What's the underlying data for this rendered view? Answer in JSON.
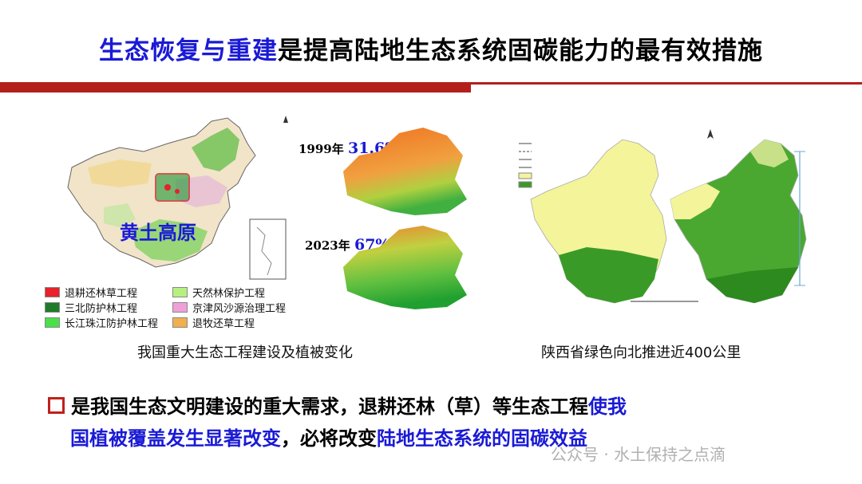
{
  "title": {
    "highlight": "生态恢复与重建",
    "rest": "是提高陆地生态系统固碳能力的最有效措施"
  },
  "left_map": {
    "label": "黄土高原",
    "legend": [
      {
        "label": "退耕还林草工程",
        "color": "#e8212a"
      },
      {
        "label": "天然林保护工程",
        "color": "#b8f080"
      },
      {
        "label": "三北防护林工程",
        "color": "#1f7a2a"
      },
      {
        "label": "京津风沙源治理工程",
        "color": "#f0a0d8"
      },
      {
        "label": "长江珠江防护林工程",
        "color": "#4ae04a"
      },
      {
        "label": "退牧还草工程",
        "color": "#f0b050"
      }
    ],
    "caption": "我国重大生态工程建设及植被变化"
  },
  "vegetation": [
    {
      "year": "1999年",
      "percent": "31.6%"
    },
    {
      "year": "2023年",
      "percent": "67%"
    }
  ],
  "right_map": {
    "caption": "陕西省绿色向北推进近400公里"
  },
  "bullet": {
    "part1": "是我国生态文明建设的重大需求，退耕还林（草）等生态工程",
    "part2_blue": "使我",
    "line2_blue1": "国植被覆盖发生显著改变",
    "line2_black": "，必将改变",
    "line2_blue2": "陆地生态系统的固碳效益"
  },
  "watermark": "公众号 · 水土保持之点滴"
}
